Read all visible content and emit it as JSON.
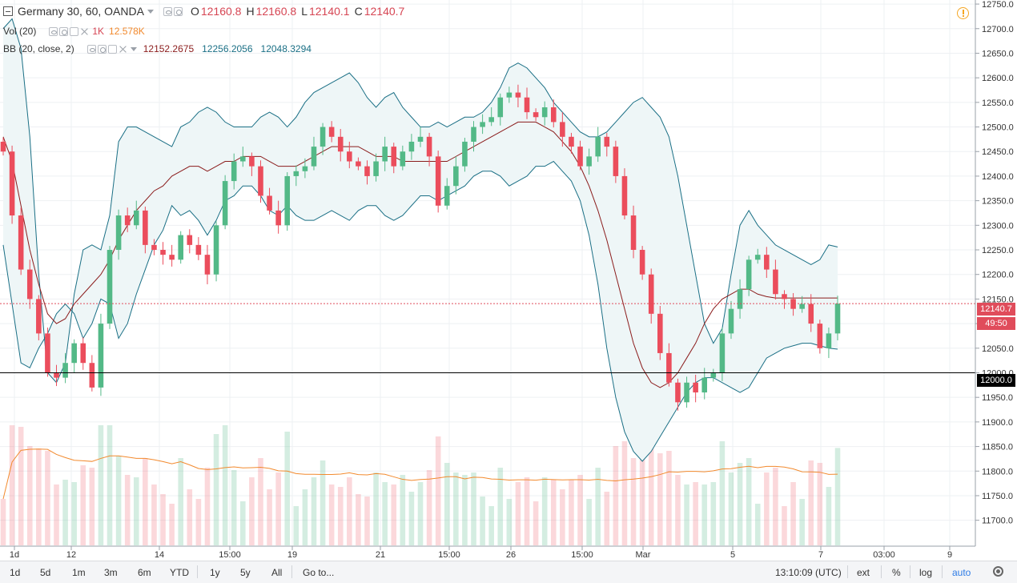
{
  "legend": {
    "symbol": "Germany 30, 60, OANDA",
    "ohlc": [
      {
        "label": "O",
        "value": "12160.8"
      },
      {
        "label": "H",
        "value": "12160.8"
      },
      {
        "label": "L",
        "value": "12140.1"
      },
      {
        "label": "C",
        "value": "12140.7"
      }
    ],
    "vol_name": "Vol (20)",
    "vol_v1": "1K",
    "vol_v2": "12.578K",
    "bb_name": "BB (20, close, 2)",
    "bb_basis": "12152.2675",
    "bb_upper": "12256.2056",
    "bb_lower": "12048.3294"
  },
  "price_axis": {
    "ticks": [
      "12750.0",
      "12700.0",
      "12650.0",
      "12600.0",
      "12550.0",
      "12500.0",
      "12450.0",
      "12400.0",
      "12350.0",
      "12300.0",
      "12250.0",
      "12200.0",
      "12150.0",
      "12100.0",
      "12050.0",
      "12000.0",
      "11950.0",
      "11900.0",
      "11850.0",
      "11800.0",
      "11750.0",
      "11700.0"
    ],
    "last_price": "12140.7",
    "countdown": "49:50",
    "level_label": "12000.0"
  },
  "time_axis": {
    "labels": [
      "1d",
      "12",
      "14",
      "15:00",
      "19",
      "21",
      "15:00",
      "26",
      "15:00",
      "Mar",
      "5",
      "7",
      "03:00",
      "9"
    ]
  },
  "colors": {
    "up": "#53b987",
    "down": "#eb4d5c",
    "bb_band": "#1a6f85",
    "bb_basis": "#8b1c1c",
    "bb_fill": "#eef6f7",
    "vol_ma": "#f28a2e",
    "last_line": "#e04c5b",
    "level_line": "#000000",
    "alert": "#f5a623"
  },
  "chart_data": {
    "type": "candlestick",
    "title": "Germany 30, 60, OANDA",
    "xlabel": "",
    "ylabel": "",
    "ylim": [
      11675,
      12755
    ],
    "x_ticks": [
      "12",
      "14",
      "15:00",
      "19",
      "21",
      "15:00",
      "26",
      "15:00",
      "Mar",
      "5",
      "7",
      "03:00",
      "9"
    ],
    "last_price": 12140.7,
    "horizontal_level": 12000.0,
    "closes": [
      12450,
      12320,
      12210,
      12150,
      12080,
      12000,
      11990,
      12020,
      12060,
      12020,
      11970,
      12100,
      12250,
      12320,
      12300,
      12330,
      12260,
      12250,
      12240,
      12230,
      12280,
      12260,
      12240,
      12200,
      12300,
      12390,
      12430,
      12440,
      12420,
      12360,
      12330,
      12300,
      12400,
      12410,
      12420,
      12460,
      12500,
      12480,
      12450,
      12430,
      12420,
      12400,
      12430,
      12460,
      12420,
      12450,
      12470,
      12480,
      12440,
      12340,
      12380,
      12420,
      12470,
      12500,
      12510,
      12520,
      12560,
      12570,
      12560,
      12530,
      12520,
      12540,
      12510,
      12480,
      12460,
      12420,
      12440,
      12480,
      12460,
      12400,
      12320,
      12250,
      12200,
      12120,
      12040,
      11980,
      11940,
      11980,
      11960,
      11990,
      12000,
      12080,
      12130,
      12170,
      12230,
      12240,
      12210,
      12160,
      12150,
      12130,
      12140,
      12100,
      12050,
      12080,
      12140.7
    ],
    "bb_upper": [
      12700,
      12720,
      12660,
      12480,
      12200,
      12000,
      11980,
      12020,
      12160,
      12250,
      12260,
      12250,
      12320,
      12470,
      12500,
      12500,
      12490,
      12480,
      12470,
      12460,
      12500,
      12510,
      12530,
      12540,
      12530,
      12510,
      12500,
      12500,
      12500,
      12520,
      12530,
      12520,
      12500,
      12520,
      12550,
      12570,
      12580,
      12590,
      12600,
      12610,
      12590,
      12560,
      12540,
      12560,
      12570,
      12540,
      12520,
      12500,
      12500,
      12510,
      12500,
      12510,
      12520,
      12520,
      12530,
      12550,
      12580,
      12620,
      12630,
      12620,
      12600,
      12580,
      12550,
      12530,
      12510,
      12490,
      12480,
      12480,
      12490,
      12510,
      12530,
      12550,
      12560,
      12540,
      12520,
      12480,
      12400,
      12300,
      12200,
      12100,
      12060,
      12090,
      12200,
      12300,
      12330,
      12300,
      12280,
      12260,
      12250,
      12240,
      12230,
      12220,
      12230,
      12260,
      12256
    ],
    "bb_basis": [
      12480,
      12430,
      12340,
      12250,
      12180,
      12120,
      12100,
      12110,
      12140,
      12160,
      12180,
      12200,
      12230,
      12270,
      12300,
      12330,
      12350,
      12370,
      12380,
      12400,
      12410,
      12420,
      12420,
      12410,
      12420,
      12430,
      12430,
      12440,
      12440,
      12440,
      12430,
      12420,
      12420,
      12420,
      12430,
      12440,
      12450,
      12460,
      12460,
      12460,
      12460,
      12450,
      12440,
      12440,
      12440,
      12430,
      12430,
      12430,
      12430,
      12430,
      12430,
      12440,
      12450,
      12460,
      12470,
      12480,
      12490,
      12500,
      12510,
      12510,
      12510,
      12500,
      12490,
      12470,
      12450,
      12420,
      12380,
      12330,
      12270,
      12200,
      12130,
      12060,
      12010,
      11980,
      11970,
      11980,
      12000,
      12030,
      12060,
      12100,
      12130,
      12150,
      12160,
      12170,
      12170,
      12160,
      12155,
      12152,
      12152,
      12152,
      12152,
      12152,
      12152,
      12152,
      12152
    ],
    "bb_lower": [
      12260,
      12140,
      12020,
      12010,
      12050,
      12080,
      12120,
      12140,
      12120,
      12070,
      12100,
      12150,
      12140,
      12070,
      12100,
      12160,
      12210,
      12260,
      12290,
      12340,
      12320,
      12330,
      12310,
      12280,
      12310,
      12350,
      12360,
      12380,
      12380,
      12360,
      12330,
      12320,
      12340,
      12320,
      12310,
      12310,
      12320,
      12330,
      12320,
      12310,
      12330,
      12340,
      12340,
      12320,
      12310,
      12320,
      12340,
      12360,
      12360,
      12350,
      12360,
      12370,
      12380,
      12400,
      12410,
      12410,
      12400,
      12380,
      12390,
      12400,
      12420,
      12420,
      12430,
      12410,
      12390,
      12350,
      12280,
      12180,
      12050,
      11950,
      11880,
      11840,
      11820,
      11840,
      11870,
      11900,
      11930,
      11960,
      11980,
      11990,
      11990,
      11980,
      11970,
      11960,
      11970,
      12000,
      12030,
      12040,
      12050,
      12055,
      12060,
      12060,
      12055,
      12050,
      12048
    ]
  },
  "bottom_bar": {
    "timeframes": [
      "1d",
      "5d",
      "1m",
      "3m",
      "6m",
      "YTD",
      "1y",
      "5y",
      "All"
    ],
    "goto": "Go to...",
    "clock": "13:10:09 (UTC)",
    "ext": "ext",
    "pct": "%",
    "log": "log",
    "auto": "auto"
  }
}
